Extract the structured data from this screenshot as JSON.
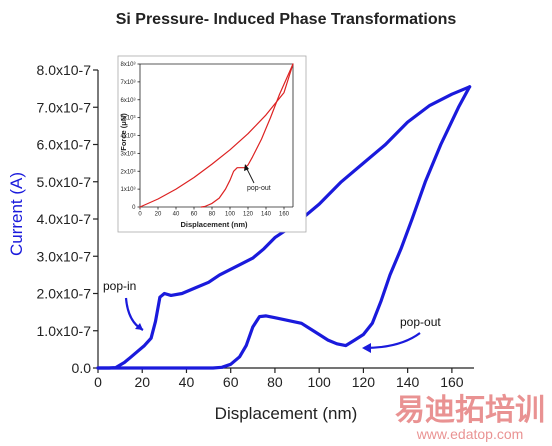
{
  "chart_data": [
    {
      "type": "line",
      "title": "Si Pressure- Induced Phase Transformations",
      "xlabel": "Displacement (nm)",
      "ylabel": "Current (A)",
      "xlim": [
        0,
        170
      ],
      "ylim": [
        0,
        8e-07
      ],
      "x_ticks": [
        "0",
        "20",
        "40",
        "60",
        "80",
        "100",
        "120",
        "140",
        "160"
      ],
      "y_ticks": [
        "0.0",
        "1.0x10-7",
        "2.0x10-7",
        "3.0x10-7",
        "4.0x10-7",
        "5.0x10-7",
        "6.0x10-7",
        "7.0x10-7",
        "8.0x10-7"
      ],
      "series": [
        {
          "color": "#1a1adc",
          "points": [
            [
              0,
              0
            ],
            [
              5,
              0
            ],
            [
              8,
              1e-09
            ],
            [
              12,
              1.5e-08
            ],
            [
              15,
              3e-08
            ],
            [
              18,
              4.5e-08
            ],
            [
              21,
              6e-08
            ],
            [
              24,
              8e-08
            ],
            [
              26,
              1.25e-07
            ],
            [
              28,
              1.9e-07
            ],
            [
              30,
              2e-07
            ],
            [
              33,
              1.95e-07
            ],
            [
              38,
              2e-07
            ],
            [
              44,
              2.15e-07
            ],
            [
              50,
              2.3e-07
            ],
            [
              55,
              2.5e-07
            ],
            [
              60,
              2.65e-07
            ],
            [
              65,
              2.8e-07
            ],
            [
              70,
              2.95e-07
            ],
            [
              75,
              3.2e-07
            ],
            [
              80,
              3.5e-07
            ],
            [
              90,
              3.9e-07
            ],
            [
              100,
              4.4e-07
            ],
            [
              110,
              5e-07
            ],
            [
              120,
              5.5e-07
            ],
            [
              130,
              6e-07
            ],
            [
              140,
              6.6e-07
            ],
            [
              150,
              7.05e-07
            ],
            [
              160,
              7.35e-07
            ],
            [
              168,
              7.55e-07
            ]
          ]
        },
        {
          "color": "#1a1adc",
          "points": [
            [
              168,
              7.55e-07
            ],
            [
              163,
              7e-07
            ],
            [
              155,
              6e-07
            ],
            [
              148,
              5e-07
            ],
            [
              142,
              4e-07
            ],
            [
              137,
              3.2e-07
            ],
            [
              132,
              2.5e-07
            ],
            [
              128,
              1.8e-07
            ],
            [
              124,
              1.2e-07
            ],
            [
              120,
              9e-08
            ],
            [
              116,
              7.5e-08
            ],
            [
              112,
              6e-08
            ],
            [
              108,
              6.5e-08
            ],
            [
              104,
              7.5e-08
            ],
            [
              100,
              9e-08
            ],
            [
              96,
              1.05e-07
            ],
            [
              92,
              1.2e-07
            ],
            [
              88,
              1.25e-07
            ],
            [
              84,
              1.3e-07
            ],
            [
              80,
              1.35e-07
            ],
            [
              76,
              1.4e-07
            ],
            [
              73,
              1.38e-07
            ],
            [
              70,
              1.1e-07
            ],
            [
              67,
              6e-08
            ],
            [
              64,
              3e-08
            ],
            [
              60,
              1e-08
            ],
            [
              56,
              2e-09
            ],
            [
              52,
              0
            ],
            [
              20,
              0
            ],
            [
              0,
              0
            ]
          ]
        }
      ],
      "annotations": [
        {
          "text": "pop-in",
          "at": [
            25,
            1.1e-07
          ]
        },
        {
          "text": "pop-out",
          "at": [
            113,
            6.5e-08
          ]
        }
      ]
    },
    {
      "type": "line",
      "xlabel": "Displacement (nm)",
      "ylabel": "Force (μN)",
      "xlim": [
        0,
        170
      ],
      "ylim": [
        0,
        8000
      ],
      "x_ticks": [
        "0",
        "20",
        "40",
        "60",
        "80",
        "100",
        "120",
        "140",
        "160"
      ],
      "y_ticks": [
        "0",
        "1x10³",
        "2x10³",
        "3x10³",
        "4x10³",
        "5x10³",
        "6x10³",
        "7x10³",
        "8x10³"
      ],
      "series": [
        {
          "color": "#dd2222",
          "points": [
            [
              0,
              0
            ],
            [
              20,
              450
            ],
            [
              40,
              1000
            ],
            [
              60,
              1650
            ],
            [
              80,
              2400
            ],
            [
              100,
              3200
            ],
            [
              120,
              4100
            ],
            [
              140,
              5150
            ],
            [
              160,
              6400
            ],
            [
              170,
              8000
            ]
          ]
        },
        {
          "color": "#dd2222",
          "points": [
            [
              170,
              8000
            ],
            [
              155,
              6300
            ],
            [
              145,
              5000
            ],
            [
              135,
              3800
            ],
            [
              125,
              2800
            ],
            [
              120,
              2350
            ],
            [
              116,
              2200
            ],
            [
              108,
              2200
            ],
            [
              104,
              2000
            ],
            [
              100,
              1500
            ],
            [
              95,
              1000
            ],
            [
              88,
              500
            ],
            [
              80,
              200
            ],
            [
              72,
              30
            ],
            [
              68,
              0
            ]
          ]
        }
      ],
      "annotations": [
        {
          "text": "pop-out",
          "at": [
            113,
            2200
          ]
        }
      ]
    }
  ],
  "watermark": {
    "text_cn": "易迪拓培训",
    "url": "www.edatop.com"
  }
}
